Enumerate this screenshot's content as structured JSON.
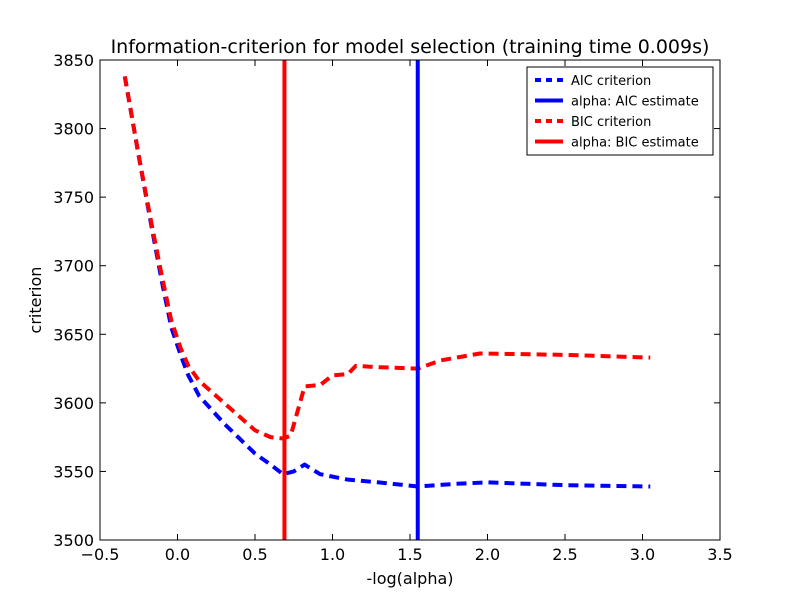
{
  "chart_data": {
    "type": "line",
    "title": "Information-criterion for model selection (training time 0.009s)",
    "xlabel": "-log(alpha)",
    "ylabel": "criterion",
    "xlim": [
      -0.5,
      3.5
    ],
    "ylim": [
      3500,
      3850
    ],
    "x_ticks": [
      -0.5,
      0.0,
      0.5,
      1.0,
      1.5,
      2.0,
      2.5,
      3.0,
      3.5
    ],
    "x_tick_labels": [
      "−0.5",
      "0.0",
      "0.5",
      "1.0",
      "1.5",
      "2.0",
      "2.5",
      "3.0",
      "3.5"
    ],
    "y_ticks": [
      3500,
      3550,
      3600,
      3650,
      3700,
      3750,
      3800,
      3850
    ],
    "y_tick_labels": [
      "3500",
      "3550",
      "3600",
      "3650",
      "3700",
      "3750",
      "3800",
      "3850"
    ],
    "grid": false,
    "legend_position": "top-right",
    "series": [
      {
        "name": "AIC criterion",
        "style": "dashed",
        "color": "#0000ff",
        "x": [
          -0.34,
          -0.25,
          -0.17,
          -0.1,
          -0.04,
          0.02,
          0.07,
          0.14,
          0.3,
          0.5,
          0.6,
          0.68,
          0.75,
          0.82,
          0.92,
          1.1,
          1.3,
          1.55,
          1.8,
          2.0,
          2.5,
          3.05
        ],
        "y": [
          3838,
          3780,
          3730,
          3688,
          3655,
          3635,
          3620,
          3605,
          3585,
          3563,
          3555,
          3548,
          3550,
          3555,
          3548,
          3544,
          3542,
          3539,
          3541,
          3542,
          3540,
          3539
        ]
      },
      {
        "name": "alpha: AIC estimate",
        "style": "vertical",
        "color": "#0000ff",
        "x_value": 1.55
      },
      {
        "name": "BIC criterion",
        "style": "dashed",
        "color": "#ff0000",
        "x": [
          -0.34,
          -0.25,
          -0.17,
          -0.1,
          -0.04,
          0.02,
          0.07,
          0.14,
          0.3,
          0.5,
          0.6,
          0.68,
          0.73,
          0.82,
          0.92,
          1.0,
          1.1,
          1.15,
          1.3,
          1.55,
          1.7,
          1.95,
          2.5,
          3.05
        ],
        "y": [
          3838,
          3780,
          3732,
          3692,
          3660,
          3640,
          3627,
          3616,
          3600,
          3580,
          3575,
          3574,
          3576,
          3612,
          3613,
          3620,
          3621,
          3627,
          3626,
          3625,
          3631,
          3636,
          3635,
          3633
        ]
      },
      {
        "name": "alpha: BIC estimate",
        "style": "vertical",
        "color": "#ff0000",
        "x_value": 0.69
      }
    ]
  }
}
